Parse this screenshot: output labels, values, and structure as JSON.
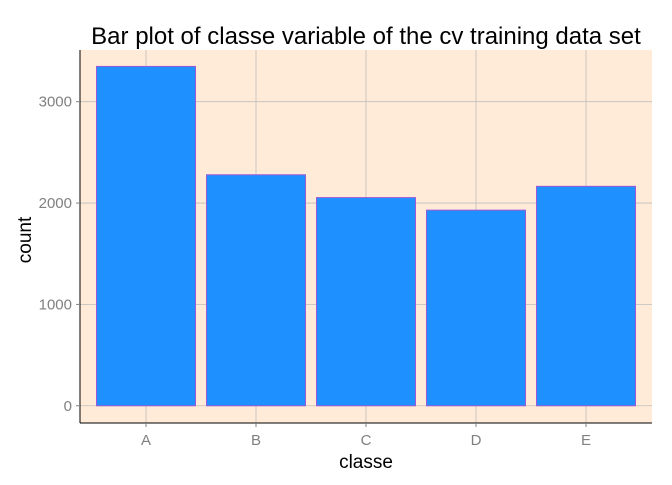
{
  "chart_data": {
    "type": "bar",
    "title": "Bar plot of classe variable of the cv training data set",
    "xlabel": "classe",
    "ylabel": "count",
    "categories": [
      "A",
      "B",
      "C",
      "D",
      "E"
    ],
    "values": [
      3348,
      2279,
      2054,
      1930,
      2165
    ],
    "y_ticks": [
      0,
      1000,
      2000,
      3000
    ],
    "y_tick_labels": [
      "0",
      "1000",
      "2000",
      "3000"
    ],
    "ylim": [
      -170,
      3510
    ],
    "grid": true,
    "legend": "none",
    "colors": {
      "panel_background": "#ffebd7",
      "grid": "#bebebe",
      "bar_fill": "#1e90ff",
      "bar_outline": "#9b59d6",
      "tick_label": "#808080",
      "axis_line": "#000000",
      "text": "#000000"
    }
  }
}
